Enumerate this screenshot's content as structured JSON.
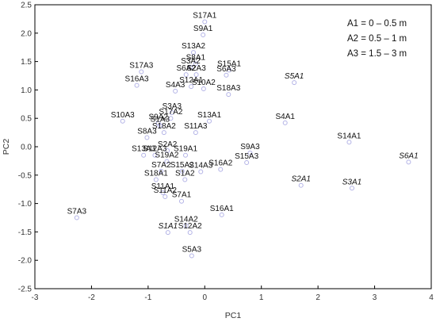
{
  "chart_data": {
    "type": "scatter",
    "xlabel": "PC1",
    "ylabel": "PC2",
    "xlim": [
      -3,
      4
    ],
    "ylim": [
      -2.5,
      2.5
    ],
    "xticks": [
      "-3",
      "-2",
      "-1",
      "0",
      "1",
      "2",
      "3",
      "4"
    ],
    "yticks": [
      "2.5",
      "2.0",
      "1.5",
      "1.0",
      "0.5",
      "0.0",
      "-0.5",
      "-1.0",
      "-1.5",
      "-2.0",
      "-2.5"
    ],
    "grid": false,
    "legend": {
      "placement": "top-right",
      "entries": [
        "A1 = 0 – 0.5 m",
        "A2 = 0.5 – 1 m",
        "A3 = 1.5 – 3 m"
      ]
    },
    "marker_color": "#b3b3e6",
    "points": [
      {
        "label": "S17A1",
        "x": 0.0,
        "y": 2.2,
        "italic": false
      },
      {
        "label": "S9A1",
        "x": -0.03,
        "y": 1.97,
        "italic": false
      },
      {
        "label": "S13A2",
        "x": -0.2,
        "y": 1.66,
        "italic": false
      },
      {
        "label": "S8A1",
        "x": -0.16,
        "y": 1.46,
        "italic": false
      },
      {
        "label": "S3A2",
        "x": -0.25,
        "y": 1.4,
        "italic": false
      },
      {
        "label": "S15A1",
        "x": 0.43,
        "y": 1.35,
        "italic": false
      },
      {
        "label": "S6A3",
        "x": 0.38,
        "y": 1.26,
        "italic": false
      },
      {
        "label": "S6A2",
        "x": -0.33,
        "y": 1.27,
        "italic": false
      },
      {
        "label": "S2A3",
        "x": -0.15,
        "y": 1.27,
        "italic": false
      },
      {
        "label": "S17A3",
        "x": -1.12,
        "y": 1.32,
        "italic": false
      },
      {
        "label": "S16A3",
        "x": -1.2,
        "y": 1.08,
        "italic": false
      },
      {
        "label": "S5A1",
        "x": 1.58,
        "y": 1.13,
        "italic": true
      },
      {
        "label": "S12A1",
        "x": -0.24,
        "y": 1.06,
        "italic": false
      },
      {
        "label": "S10A2",
        "x": -0.02,
        "y": 1.02,
        "italic": false
      },
      {
        "label": "S4A3",
        "x": -0.52,
        "y": 0.98,
        "italic": false
      },
      {
        "label": "S18A3",
        "x": 0.42,
        "y": 0.92,
        "italic": false
      },
      {
        "label": "S3A3",
        "x": -0.58,
        "y": 0.6,
        "italic": false
      },
      {
        "label": "S17A2",
        "x": -0.6,
        "y": 0.5,
        "italic": false
      },
      {
        "label": "S13A1",
        "x": 0.08,
        "y": 0.45,
        "italic": false
      },
      {
        "label": "S10A3",
        "x": -1.45,
        "y": 0.45,
        "italic": false
      },
      {
        "label": "S9A2",
        "x": -0.82,
        "y": 0.41,
        "italic": false
      },
      {
        "label": "S1A3",
        "x": -0.79,
        "y": 0.37,
        "italic": false
      },
      {
        "label": "S4A1",
        "x": 1.42,
        "y": 0.42,
        "italic": false
      },
      {
        "label": "S18A2",
        "x": -0.72,
        "y": 0.25,
        "italic": false
      },
      {
        "label": "S11A3",
        "x": -0.16,
        "y": 0.25,
        "italic": false
      },
      {
        "label": "S8A3",
        "x": -1.02,
        "y": 0.16,
        "italic": false
      },
      {
        "label": "S14A1",
        "x": 2.55,
        "y": 0.08,
        "italic": false
      },
      {
        "label": "S2A2",
        "x": -0.66,
        "y": -0.07,
        "italic": false
      },
      {
        "label": "S19A1",
        "x": -0.34,
        "y": -0.15,
        "italic": false
      },
      {
        "label": "S13A3",
        "x": -1.08,
        "y": -0.15,
        "italic": false
      },
      {
        "label": "S12A3",
        "x": -0.88,
        "y": -0.15,
        "italic": false
      },
      {
        "label": "S9A3",
        "x": 0.8,
        "y": -0.11,
        "italic": false
      },
      {
        "label": "S19A2",
        "x": -0.67,
        "y": -0.26,
        "italic": false
      },
      {
        "label": "S15A3",
        "x": 0.74,
        "y": -0.28,
        "italic": false
      },
      {
        "label": "S6A1",
        "x": 3.6,
        "y": -0.27,
        "italic": true
      },
      {
        "label": "S7A2",
        "x": -0.77,
        "y": -0.43,
        "italic": false
      },
      {
        "label": "S15A2",
        "x": -0.4,
        "y": -0.43,
        "italic": false
      },
      {
        "label": "S14A3",
        "x": -0.07,
        "y": -0.44,
        "italic": false
      },
      {
        "label": "S16A2",
        "x": 0.28,
        "y": -0.4,
        "italic": false
      },
      {
        "label": "S18A1",
        "x": -0.86,
        "y": -0.58,
        "italic": false
      },
      {
        "label": "S1A2",
        "x": -0.35,
        "y": -0.58,
        "italic": false
      },
      {
        "label": "S2A1",
        "x": 1.7,
        "y": -0.68,
        "italic": true
      },
      {
        "label": "S3A1",
        "x": 2.6,
        "y": -0.73,
        "italic": true
      },
      {
        "label": "S11A1",
        "x": -0.74,
        "y": -0.81,
        "italic": false
      },
      {
        "label": "S7A1",
        "x": -0.41,
        "y": -0.96,
        "italic": false
      },
      {
        "label": "S11A2",
        "x": -0.7,
        "y": -0.88,
        "italic": false
      },
      {
        "label": "S16A1",
        "x": 0.3,
        "y": -1.2,
        "italic": false
      },
      {
        "label": "S7A3",
        "x": -2.26,
        "y": -1.25,
        "italic": false
      },
      {
        "label": "S14A2",
        "x": -0.33,
        "y": -1.39,
        "italic": false
      },
      {
        "label": "S1A1",
        "x": -0.65,
        "y": -1.51,
        "italic": true
      },
      {
        "label": "S12A2",
        "x": -0.26,
        "y": -1.51,
        "italic": false
      },
      {
        "label": "S5A3",
        "x": -0.23,
        "y": -1.92,
        "italic": false
      }
    ]
  }
}
